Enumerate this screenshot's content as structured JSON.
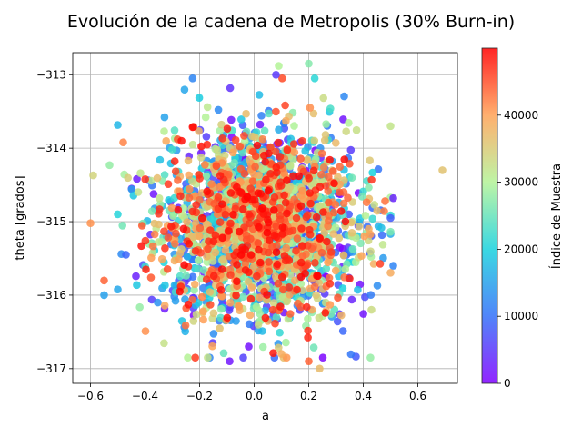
{
  "chart_data": {
    "type": "scatter",
    "title": "Evolución de la cadena de Metropolis (30% Burn-in)",
    "xlabel": "a",
    "ylabel": "theta [grados]",
    "xlim": [
      -0.665,
      0.745
    ],
    "ylim": [
      -317.2,
      -312.7
    ],
    "xticks": [
      -0.6,
      -0.4,
      -0.2,
      0.0,
      0.2,
      0.4,
      0.6
    ],
    "xtick_labels": [
      "−0.6",
      "−0.4",
      "−0.2",
      "0.0",
      "0.2",
      "0.4",
      "0.6"
    ],
    "yticks": [
      -313,
      -314,
      -315,
      -316,
      -317
    ],
    "ytick_labels": [
      "−313",
      "−314",
      "−315",
      "−316",
      "−317"
    ],
    "grid": true,
    "colormap": "rainbow",
    "point_alpha": 0.85,
    "color_range": [
      0,
      50000
    ],
    "colorbar": {
      "label": "Índice de Muestra",
      "ticks": [
        0,
        10000,
        20000,
        30000,
        40000
      ],
      "tick_labels": [
        "0",
        "10000",
        "20000",
        "30000",
        "40000"
      ]
    },
    "sample_count": 50000,
    "center": {
      "a": 0.02,
      "theta": -315.05
    },
    "spread": {
      "a": 0.17,
      "theta": 0.62
    },
    "points": [
      {
        "a": -0.6,
        "theta": -315.02,
        "i": 41000
      },
      {
        "a": -0.59,
        "theta": -314.37,
        "i": 34000
      },
      {
        "a": -0.55,
        "theta": -315.8,
        "i": 44000
      },
      {
        "a": -0.55,
        "theta": -316.0,
        "i": 15000
      },
      {
        "a": -0.53,
        "theta": -314.23,
        "i": 28000
      },
      {
        "a": -0.48,
        "theta": -313.92,
        "i": 42000
      },
      {
        "a": -0.47,
        "theta": -315.45,
        "i": 9000
      },
      {
        "a": 0.69,
        "theta": -314.3,
        "i": 36000
      },
      {
        "a": 0.51,
        "theta": -314.68,
        "i": 3000
      },
      {
        "a": 0.51,
        "theta": -315.6,
        "i": 12000
      },
      {
        "a": 0.5,
        "theta": -314.95,
        "i": 8000
      },
      {
        "a": 0.48,
        "theta": -314.72,
        "i": 43000
      },
      {
        "a": 0.43,
        "theta": -316.2,
        "i": 33000
      },
      {
        "a": 0.42,
        "theta": -315.1,
        "i": 39000
      },
      {
        "a": 0.09,
        "theta": -312.88,
        "i": 30000
      },
      {
        "a": 0.2,
        "theta": -312.85,
        "i": 27000
      },
      {
        "a": 0.08,
        "theta": -313.0,
        "i": 5000
      },
      {
        "a": -0.09,
        "theta": -316.9,
        "i": 2000
      },
      {
        "a": -0.02,
        "theta": -316.7,
        "i": 1500
      },
      {
        "a": 0.24,
        "theta": -317.0,
        "i": 37000
      },
      {
        "a": 0.2,
        "theta": -316.9,
        "i": 44000
      },
      {
        "a": 0.1,
        "theta": -316.8,
        "i": 39000
      }
    ]
  }
}
